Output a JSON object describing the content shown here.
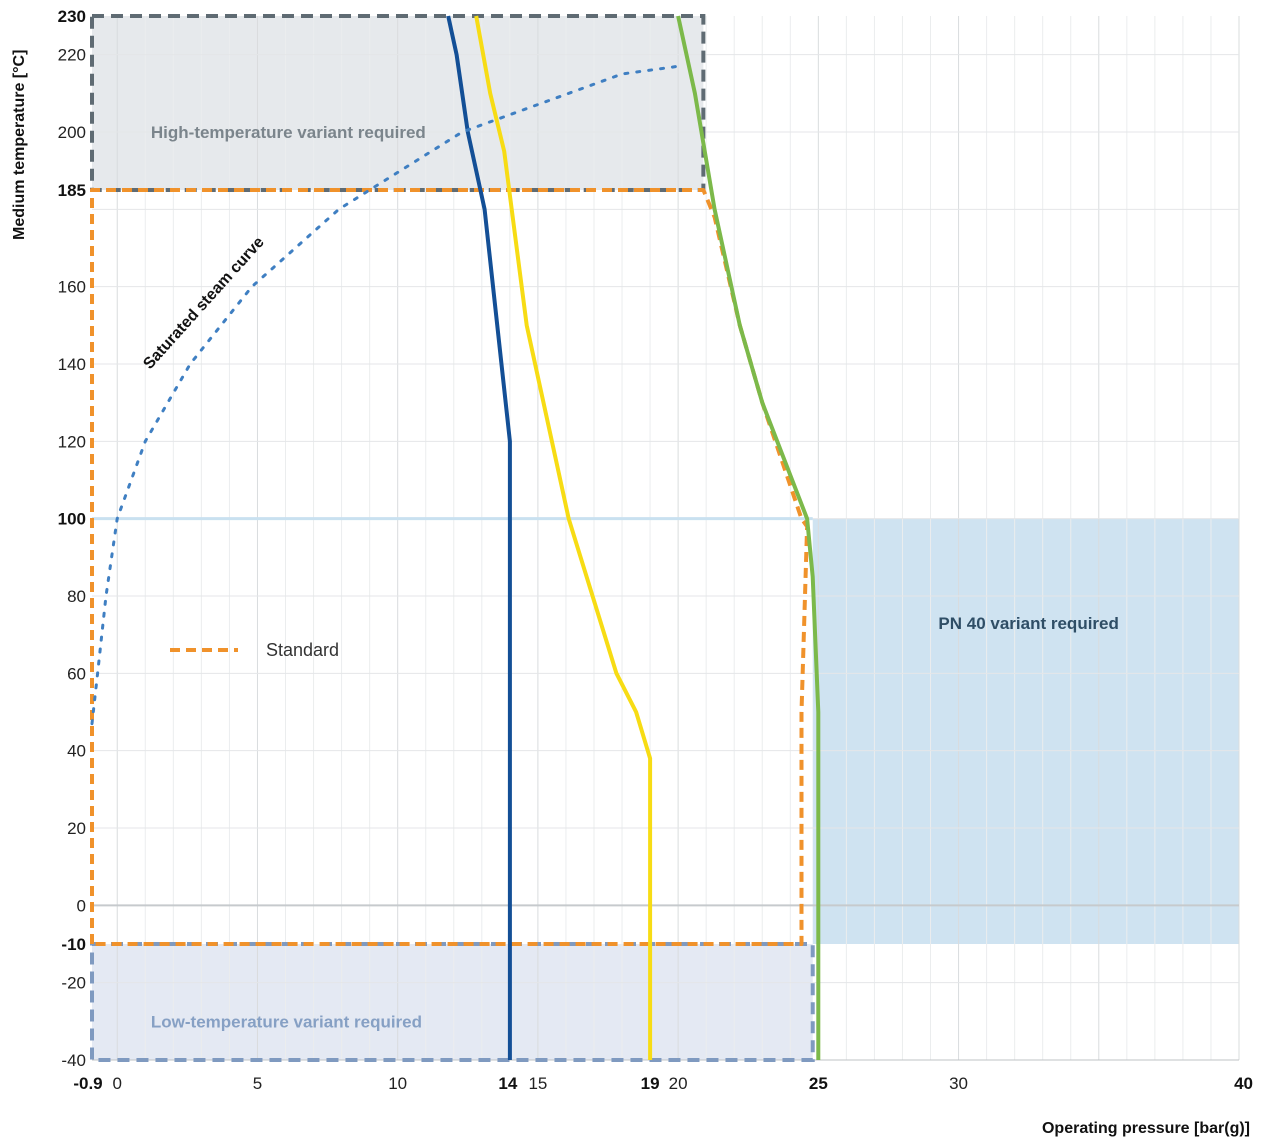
{
  "chart_data": {
    "type": "line",
    "xlabel": "Operating pressure [bar(g)]",
    "ylabel": "Medium temperature [°C]",
    "xlim": [
      -0.9,
      40
    ],
    "ylim": [
      -40,
      230
    ],
    "grid": true,
    "x_ticks": [
      {
        "value": -0.9,
        "label": "-0.9",
        "bold": true
      },
      {
        "value": 0,
        "label": "0",
        "bold": false
      },
      {
        "value": 5,
        "label": "5",
        "bold": false
      },
      {
        "value": 10,
        "label": "10",
        "bold": false
      },
      {
        "value": 14,
        "label": "14",
        "bold": true
      },
      {
        "value": 15,
        "label": "15",
        "bold": false
      },
      {
        "value": 19,
        "label": "19",
        "bold": true
      },
      {
        "value": 20,
        "label": "20",
        "bold": false
      },
      {
        "value": 25,
        "label": "25",
        "bold": true
      },
      {
        "value": 30,
        "label": "30",
        "bold": false
      },
      {
        "value": 40,
        "label": "40",
        "bold": true
      }
    ],
    "y_ticks": [
      {
        "value": 230,
        "label": "230",
        "bold": true
      },
      {
        "value": 220,
        "label": "220",
        "bold": false
      },
      {
        "value": 200,
        "label": "200",
        "bold": false
      },
      {
        "value": 185,
        "label": "185",
        "bold": true
      },
      {
        "value": 160,
        "label": "160",
        "bold": false
      },
      {
        "value": 140,
        "label": "140",
        "bold": false
      },
      {
        "value": 120,
        "label": "120",
        "bold": false
      },
      {
        "value": 100,
        "label": "100",
        "bold": true
      },
      {
        "value": 80,
        "label": "80",
        "bold": false
      },
      {
        "value": 60,
        "label": "60",
        "bold": false
      },
      {
        "value": 40,
        "label": "40",
        "bold": false
      },
      {
        "value": 20,
        "label": "20",
        "bold": false
      },
      {
        "value": 0,
        "label": "0",
        "bold": false
      },
      {
        "value": -10,
        "label": "-10",
        "bold": true
      },
      {
        "value": -20,
        "label": "-20",
        "bold": false
      },
      {
        "value": -40,
        "label": "-40",
        "bold": false
      }
    ],
    "regions": [
      {
        "name": "High-temperature variant required",
        "x_range": [
          -0.9,
          20.9
        ],
        "y_range": [
          185,
          230
        ],
        "fill": "#e6e9ec",
        "border": "#5f6b73",
        "label_color": "#7b858c"
      },
      {
        "name": "Low-temperature variant required",
        "x_range": [
          -0.9,
          24.8
        ],
        "y_range": [
          -40,
          -10
        ],
        "fill": "#e4e9f3",
        "border": "#7f9ac0",
        "label_color": "#86a0c4"
      },
      {
        "name": "PN 40 variant required",
        "x_range": [
          24.8,
          40
        ],
        "y_range": [
          -10,
          100
        ],
        "fill": "#cfe3f1",
        "border": "",
        "label_color": "#2f4e66"
      }
    ],
    "series": [
      {
        "style": "dashed",
        "color": "#f0922b",
        "x": [
          -0.9,
          -0.9,
          20.9,
          21.3,
          22.2,
          23.0,
          24.4,
          24.6,
          24.4,
          24.4,
          -0.9
        ],
        "y": [
          -10,
          185,
          185,
          178,
          150,
          130,
          100,
          98,
          50,
          -10,
          -10
        ]
      },
      {
        "style": "solid",
        "color": "#134f96",
        "x": [
          11.8,
          12.1,
          12.5,
          13.1,
          14.0,
          14.0
        ],
        "y": [
          230,
          220,
          200,
          180,
          120,
          -40
        ]
      },
      {
        "style": "solid",
        "color": "#f7dc14",
        "x": [
          12.8,
          13.3,
          13.8,
          14.6,
          16.1,
          17.8,
          18.5,
          19.0,
          19.0
        ],
        "y": [
          230,
          210,
          195,
          150,
          100,
          60,
          50,
          38,
          -40
        ]
      },
      {
        "style": "solid",
        "color": "#7cb94a",
        "x": [
          20.0,
          20.6,
          21.3,
          22.2,
          23.0,
          24.6,
          24.8,
          25.0,
          25.0
        ],
        "y": [
          230,
          210,
          180,
          150,
          130,
          100,
          85,
          50,
          -40
        ]
      },
      {
        "style": "dotted",
        "color": "#3f7fc2",
        "x": [
          -0.9,
          -0.7,
          -0.4,
          0.0,
          1.0,
          2.6,
          4.8,
          7.9,
          12.3,
          18.0,
          20.0
        ],
        "y": [
          47,
          60,
          80,
          100,
          120,
          140,
          160,
          180,
          200,
          215,
          217
        ]
      }
    ],
    "legend": [
      {
        "label": "Standard",
        "color": "#f0922b",
        "style": "dashed",
        "position": "left"
      }
    ],
    "annotations": [
      {
        "text": "Saturated steam curve"
      }
    ]
  }
}
